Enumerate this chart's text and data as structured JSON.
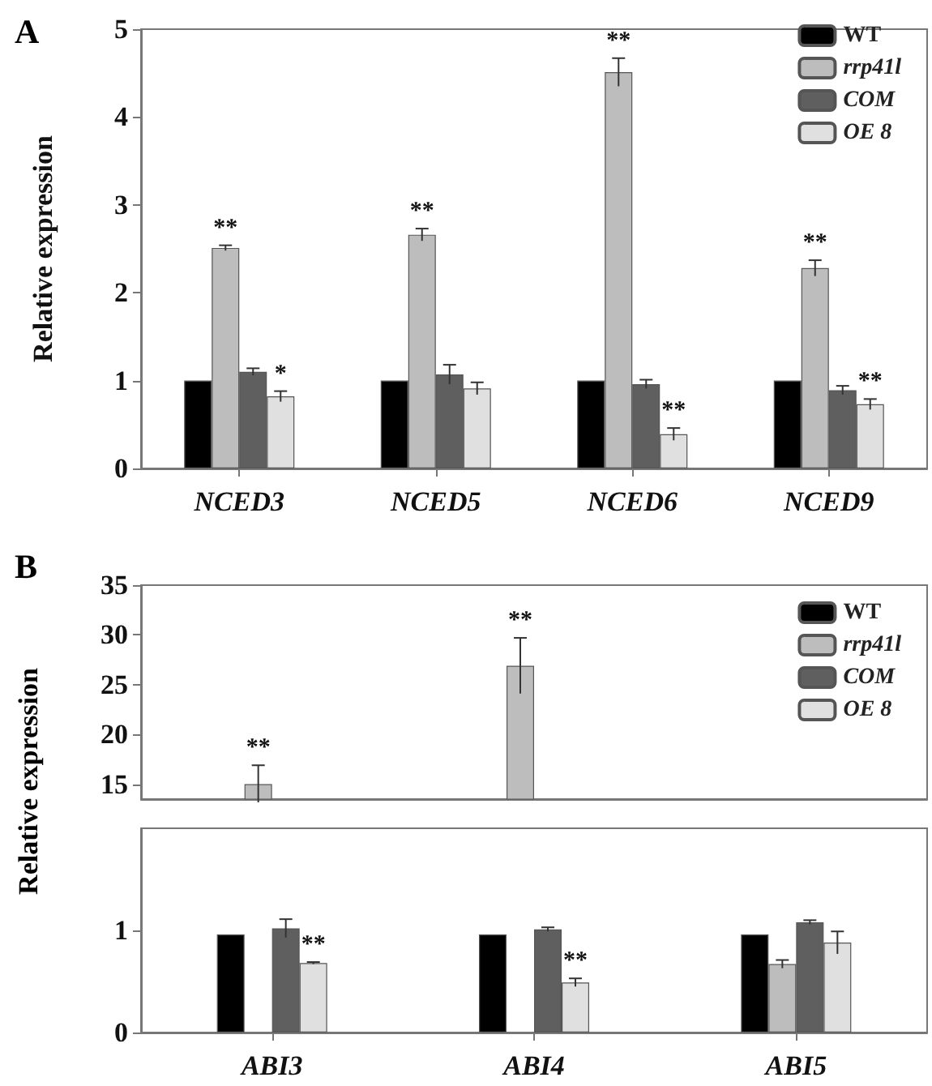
{
  "chart_data": [
    {
      "type": "bar",
      "title": "A",
      "ylabel": "Relative expression",
      "categories": [
        "NCED3",
        "NCED5",
        "NCED6",
        "NCED9"
      ],
      "ylim": [
        0,
        5
      ],
      "yticks": [
        0,
        1,
        2,
        3,
        4,
        5
      ],
      "legend": "top right",
      "series": [
        {
          "name": "WT",
          "color": "#000000",
          "values": [
            1,
            1,
            1,
            1
          ]
        },
        {
          "name": "rrp41l",
          "color": "#bdbdbd",
          "values": [
            2.51,
            2.66,
            4.51,
            2.28
          ],
          "errors": [
            0.03,
            0.07,
            0.16,
            0.09
          ]
        },
        {
          "name": "COM",
          "color": "#5f5f5f",
          "values": [
            1.1,
            1.07,
            0.96,
            0.89
          ],
          "errors": [
            0.04,
            0.11,
            0.05,
            0.05
          ]
        },
        {
          "name": "OE 8",
          "color": "#e0e0e0",
          "values": [
            0.82,
            0.91,
            0.39,
            0.73
          ],
          "errors": [
            0.06,
            0.07,
            0.07,
            0.06
          ]
        }
      ],
      "annotations": [
        {
          "text": "**",
          "x": "NCED3",
          "y": 2.54
        },
        {
          "text": "*",
          "x": "NCED3",
          "y": 0.88
        },
        {
          "text": "**",
          "x": "NCED5",
          "y": 2.73
        },
        {
          "text": "**",
          "x": "NCED6",
          "y": 4.67
        },
        {
          "text": "**",
          "x": "NCED6",
          "y": 0.46
        },
        {
          "text": "**",
          "x": "NCED9",
          "y": 2.37
        },
        {
          "text": "**",
          "x": "NCED9",
          "y": 0.79
        }
      ]
    },
    {
      "type": "bar",
      "title": "B",
      "ylabel": "Relative expression",
      "categories": [
        "ABI3",
        "ABI4",
        "ABI5"
      ],
      "ylim": [
        13.5,
        35
      ],
      "yticks": [
        15,
        20,
        25,
        30,
        35
      ],
      "legend": "top right",
      "tick_labels": "y",
      "series": [
        {
          "name": "WT",
          "color": "#000000",
          "values": [
            null,
            null,
            null
          ]
        },
        {
          "name": "rrp41l",
          "color": "#bdbdbd",
          "values": [
            15.0,
            26.9,
            null
          ],
          "errors": [
            1.9,
            2.8,
            null
          ]
        },
        {
          "name": "COM",
          "color": "#5f5f5f",
          "values": [
            null,
            null,
            null
          ]
        },
        {
          "name": "OE 8",
          "color": "#e0e0e0",
          "values": [
            null,
            null,
            null
          ]
        }
      ],
      "annotations": [
        {
          "text": "**",
          "x": "ABI3",
          "y": 15.0
        },
        {
          "text": "**",
          "x": "ABI4",
          "y": 29.7
        }
      ]
    },
    {
      "type": "bar",
      "categories": [
        "ABI3",
        "ABI4",
        "ABI5"
      ],
      "ylim": [
        0,
        2
      ],
      "yticks": [
        0,
        1
      ],
      "series": [
        {
          "color": "#000000",
          "values": [
            0.96,
            0.96,
            0.96
          ]
        },
        {
          "color": "#bdbdbd",
          "values": [
            null,
            null,
            0.67
          ],
          "errors": [
            null,
            null,
            0.04
          ]
        },
        {
          "color": "#5f5f5f",
          "values": [
            1.02,
            1.01,
            1.08
          ],
          "errors": [
            0.09,
            0.02,
            0.02
          ]
        },
        {
          "color": "#e0e0e0",
          "values": [
            0.68,
            0.49,
            0.88
          ],
          "errors": [
            0.01,
            0.04,
            0.11
          ]
        }
      ],
      "annotations": [
        {
          "text": "**",
          "x": "ABI3",
          "y": 0.69
        },
        {
          "text": "**",
          "x": "ABI4",
          "y": 0.53
        }
      ]
    }
  ]
}
